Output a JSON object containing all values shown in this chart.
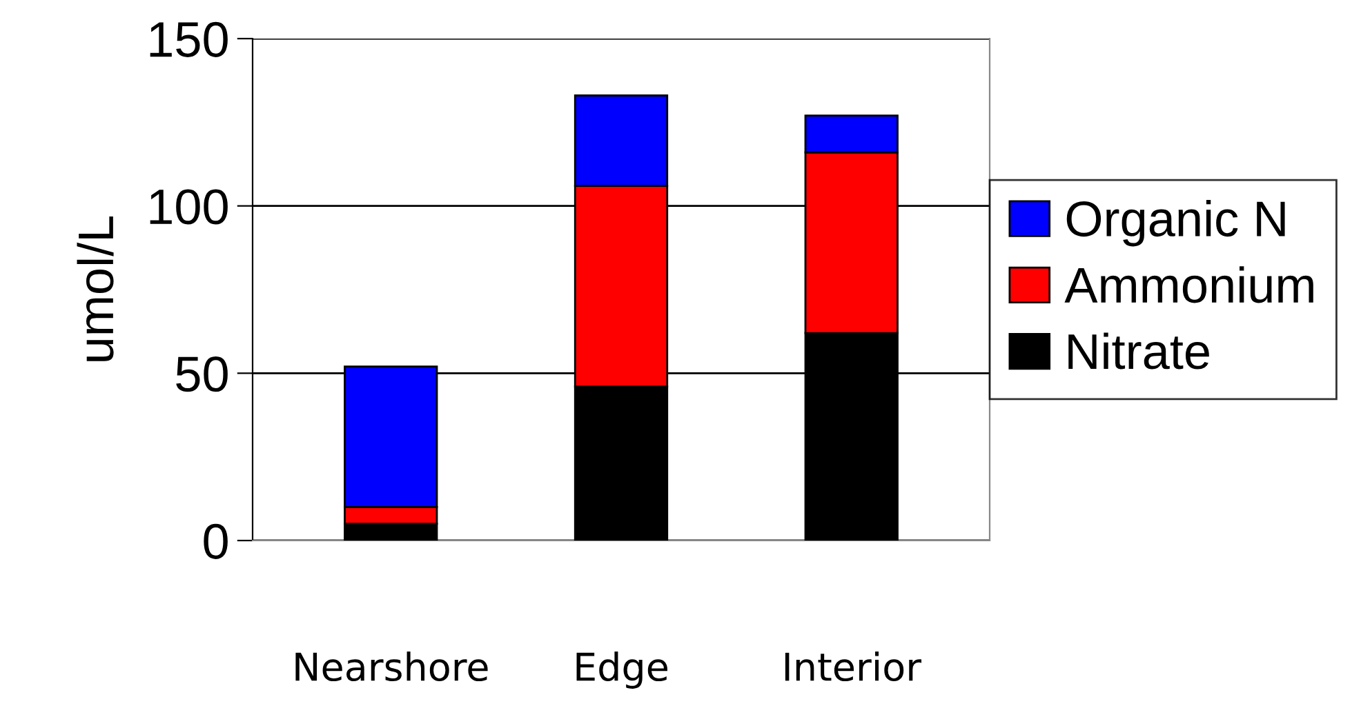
{
  "chart_data": {
    "type": "bar",
    "stacked": true,
    "ylabel": "umol/L",
    "categories": [
      "Nearshore",
      "Edge",
      "Interior"
    ],
    "series": [
      {
        "name": "Nitrate",
        "color": "#000000",
        "values": [
          5,
          46,
          62
        ]
      },
      {
        "name": "Ammonium",
        "color": "#ff0000",
        "values": [
          5,
          60,
          54
        ]
      },
      {
        "name": "Organic N",
        "color": "#0000ff",
        "values": [
          42,
          27,
          11
        ]
      }
    ],
    "ylim": [
      0,
      150
    ],
    "yticks": [
      0,
      50,
      100,
      150
    ],
    "grid": "y",
    "legend": "right"
  }
}
